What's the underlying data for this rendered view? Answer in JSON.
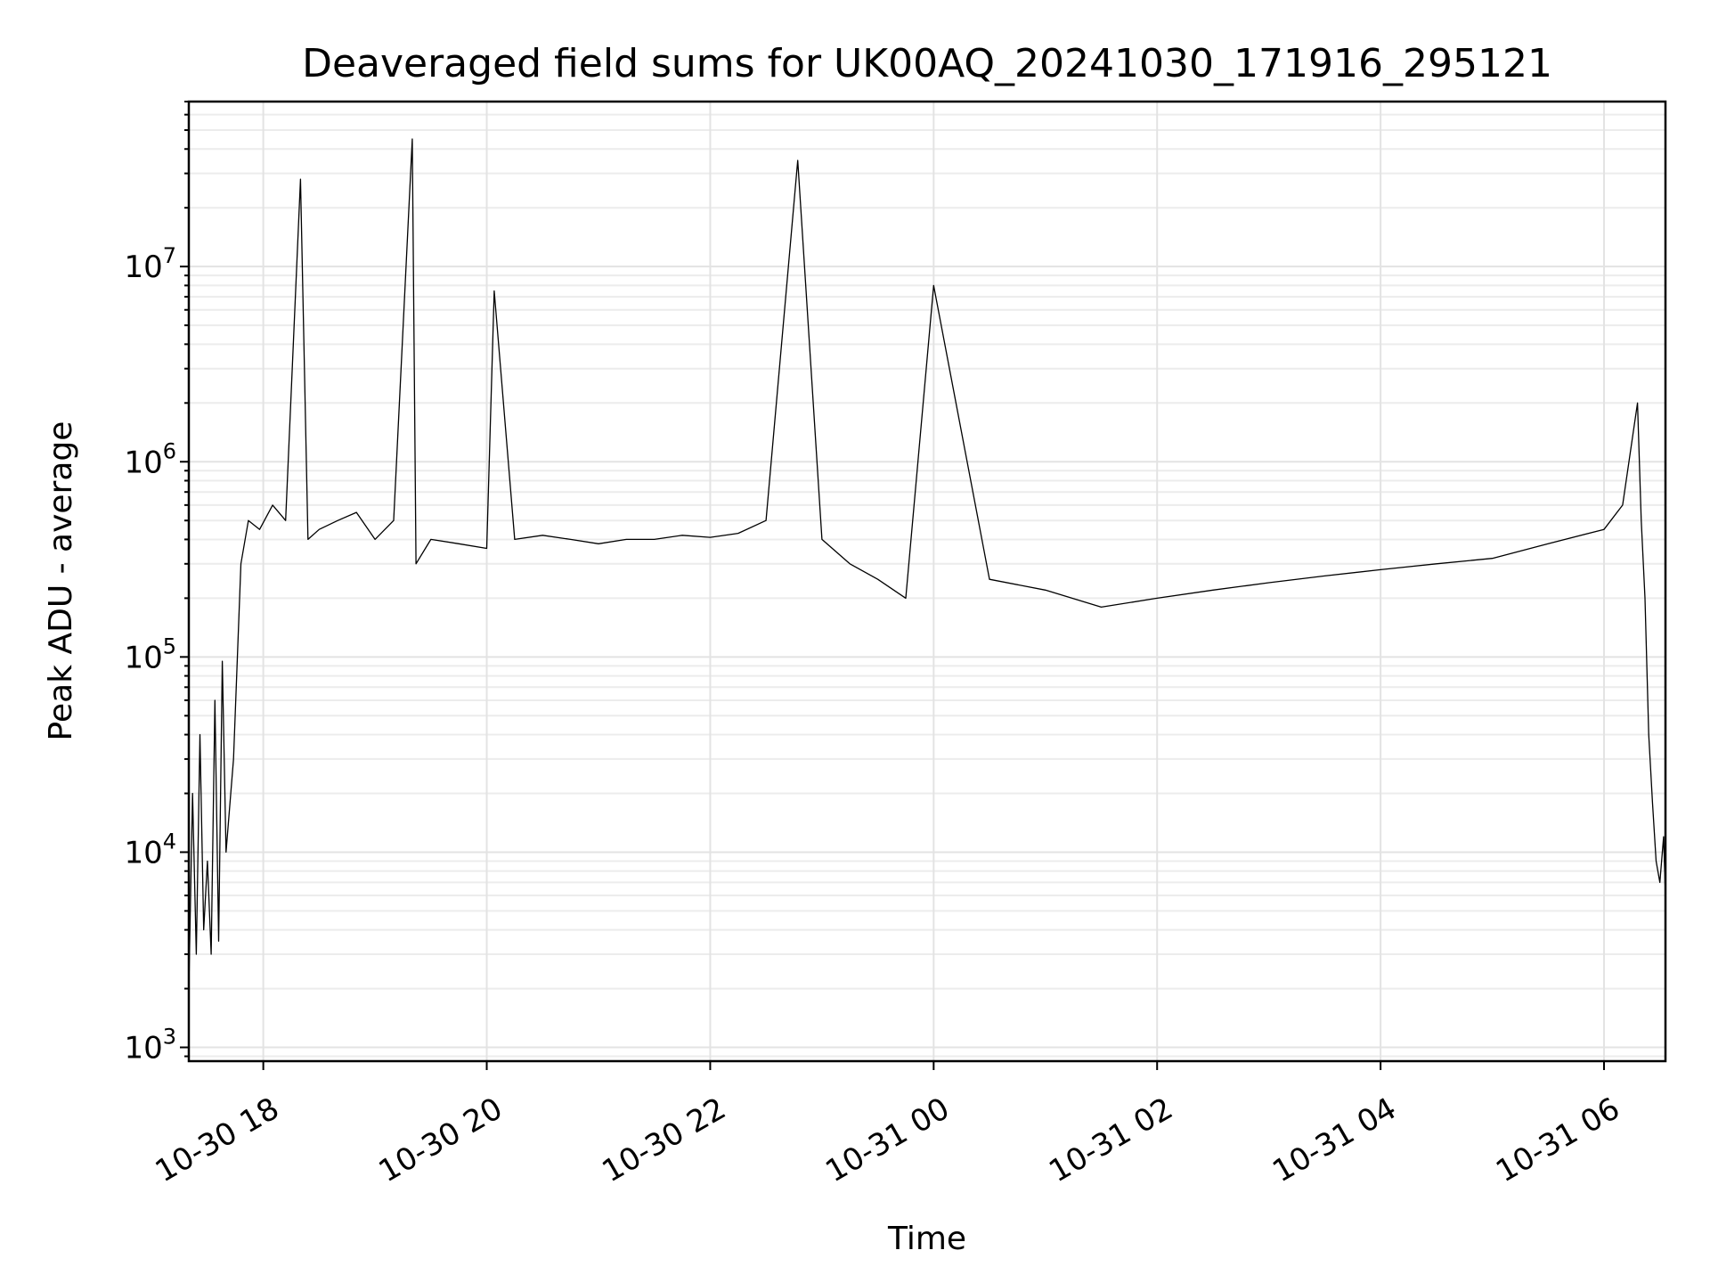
{
  "chart_data": {
    "type": "line",
    "title": "Deaveraged field sums for UK00AQ_20241030_171916_295121",
    "xlabel": "Time",
    "ylabel": "Peak ADU - average",
    "yscale": "log",
    "ylim": [
      850,
      70000000
    ],
    "xlim": [
      "2024-10-30 17:20",
      "2024-10-31 06:33"
    ],
    "grid": true,
    "line_color": "#000000",
    "x_ticks": [
      {
        "value": "2024-10-30 18:00",
        "label": "10-30 18"
      },
      {
        "value": "2024-10-30 20:00",
        "label": "10-30 20"
      },
      {
        "value": "2024-10-30 22:00",
        "label": "10-30 22"
      },
      {
        "value": "2024-10-31 00:00",
        "label": "10-31 00"
      },
      {
        "value": "2024-10-31 02:00",
        "label": "10-31 02"
      },
      {
        "value": "2024-10-31 04:00",
        "label": "10-31 04"
      },
      {
        "value": "2024-10-31 06:00",
        "label": "10-31 06"
      }
    ],
    "y_ticks": [
      {
        "value": 1000,
        "base": "10",
        "exp": "3"
      },
      {
        "value": 10000,
        "base": "10",
        "exp": "4"
      },
      {
        "value": 100000,
        "base": "10",
        "exp": "5"
      },
      {
        "value": 1000000,
        "base": "10",
        "exp": "6"
      },
      {
        "value": 10000000,
        "base": "10",
        "exp": "7"
      }
    ],
    "series": [
      {
        "x": [
          "2024-10-30 17:20",
          "2024-10-30 17:22",
          "2024-10-30 17:24",
          "2024-10-30 17:26",
          "2024-10-30 17:28",
          "2024-10-30 17:30",
          "2024-10-30 17:32",
          "2024-10-30 17:34",
          "2024-10-30 17:36",
          "2024-10-30 17:38",
          "2024-10-30 17:40",
          "2024-10-30 17:44",
          "2024-10-30 17:48",
          "2024-10-30 17:52",
          "2024-10-30 17:58",
          "2024-10-30 18:05",
          "2024-10-30 18:12",
          "2024-10-30 18:20",
          "2024-10-30 18:24",
          "2024-10-30 18:30",
          "2024-10-30 18:40",
          "2024-10-30 18:50",
          "2024-10-30 19:00",
          "2024-10-30 19:10",
          "2024-10-30 19:20",
          "2024-10-30 19:22",
          "2024-10-30 19:30",
          "2024-10-30 19:45",
          "2024-10-30 20:00",
          "2024-10-30 20:04",
          "2024-10-30 20:15",
          "2024-10-30 20:30",
          "2024-10-30 20:45",
          "2024-10-30 21:00",
          "2024-10-30 21:15",
          "2024-10-30 21:30",
          "2024-10-30 21:45",
          "2024-10-30 22:00",
          "2024-10-30 22:15",
          "2024-10-30 22:30",
          "2024-10-30 22:47",
          "2024-10-30 23:00",
          "2024-10-30 23:15",
          "2024-10-30 23:30",
          "2024-10-30 23:45",
          "2024-10-31 00:00",
          "2024-10-31 00:30",
          "2024-10-31 01:00",
          "2024-10-31 01:30",
          "2024-10-31 02:00",
          "2024-10-31 02:30",
          "2024-10-31 03:00",
          "2024-10-31 03:30",
          "2024-10-31 04:00",
          "2024-10-31 04:30",
          "2024-10-31 05:00",
          "2024-10-31 05:30",
          "2024-10-31 06:00",
          "2024-10-31 06:10",
          "2024-10-31 06:18",
          "2024-10-31 06:20",
          "2024-10-31 06:22",
          "2024-10-31 06:24",
          "2024-10-31 06:26",
          "2024-10-31 06:28",
          "2024-10-31 06:30",
          "2024-10-31 06:32",
          "2024-10-31 06:33"
        ],
        "y": [
          2000,
          20000,
          3000,
          40000,
          4000,
          9000,
          3000,
          60000,
          3500,
          95000,
          10000,
          30000,
          300000,
          500000,
          450000,
          600000,
          500000,
          28000000,
          400000,
          450000,
          500000,
          550000,
          400000,
          500000,
          45000000,
          300000,
          400000,
          380000,
          360000,
          7500000,
          400000,
          420000,
          400000,
          380000,
          400000,
          400000,
          420000,
          410000,
          430000,
          500000,
          35000000,
          400000,
          300000,
          250000,
          200000,
          8000000,
          250000,
          220000,
          180000,
          200000,
          220000,
          240000,
          260000,
          280000,
          300000,
          320000,
          380000,
          450000,
          600000,
          2000000,
          500000,
          200000,
          40000,
          18000,
          9000,
          7000,
          12000,
          6000
        ]
      }
    ]
  }
}
